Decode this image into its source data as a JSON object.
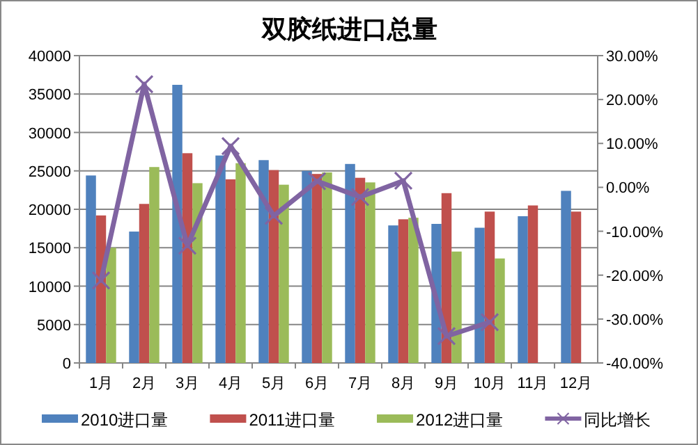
{
  "chart_data": {
    "type": "bar",
    "title": "双胶纸进口总量",
    "categories": [
      "1月",
      "2月",
      "3月",
      "4月",
      "5月",
      "6月",
      "7月",
      "8月",
      "9月",
      "10月",
      "11月",
      "12月"
    ],
    "series": [
      {
        "name": "2010进口量",
        "color": "#4f81bd",
        "values": [
          24400,
          17100,
          36200,
          27000,
          26400,
          25000,
          25900,
          17900,
          18100,
          17600,
          19100,
          22400
        ]
      },
      {
        "name": "2011进口量",
        "color": "#c0504d",
        "values": [
          19200,
          20700,
          27300,
          23900,
          25100,
          24600,
          24100,
          18700,
          22100,
          19700,
          20500,
          19700
        ]
      },
      {
        "name": "2012进口量",
        "color": "#9bbb59",
        "values": [
          15000,
          25500,
          23400,
          26000,
          23200,
          24800,
          23500,
          18900,
          14500,
          13600,
          null,
          null
        ]
      },
      {
        "name": "同比增长",
        "color": "#8064a2",
        "type": "line",
        "axis": "y2",
        "marker": "cross",
        "values": [
          -21.2,
          23.5,
          -13.3,
          9.4,
          -6.5,
          1.4,
          -2.2,
          1.5,
          -33.9,
          -30.7,
          null,
          null
        ]
      }
    ],
    "ylim": [
      0,
      40000
    ],
    "yticks": [
      0,
      5000,
      10000,
      15000,
      20000,
      25000,
      30000,
      35000,
      40000
    ],
    "y2lim": [
      -40,
      30
    ],
    "y2ticks": [
      {
        "value": -40,
        "label": "-40.00%"
      },
      {
        "value": -30,
        "label": "-30.00%"
      },
      {
        "value": -20,
        "label": "-20.00%"
      },
      {
        "value": -10,
        "label": "-10.00%"
      },
      {
        "value": 0,
        "label": "0.00%"
      },
      {
        "value": 10,
        "label": "10.00%"
      },
      {
        "value": 20,
        "label": "20.00%"
      },
      {
        "value": 30,
        "label": "30.00%"
      }
    ],
    "grid": "y",
    "legend": "bottom"
  }
}
